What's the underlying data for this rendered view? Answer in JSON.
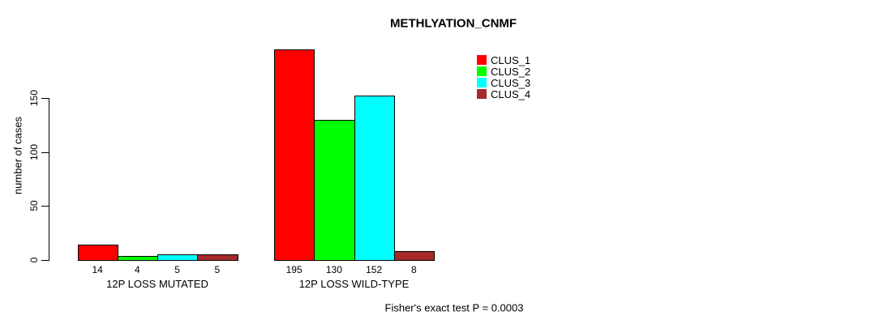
{
  "chart_data": {
    "type": "bar",
    "title": "METHLYATION_CNMF",
    "ylabel": "number of cases",
    "xlabel": "",
    "categories": [
      "12P LOSS MUTATED",
      "12P LOSS WILD-TYPE"
    ],
    "series": [
      {
        "name": "CLUS_1",
        "color": "#ff0000",
        "values": [
          14,
          195
        ]
      },
      {
        "name": "CLUS_2",
        "color": "#00ff00",
        "values": [
          4,
          130
        ]
      },
      {
        "name": "CLUS_3",
        "color": "#00ffff",
        "values": [
          5,
          152
        ]
      },
      {
        "name": "CLUS_4",
        "color": "#a52a2a",
        "values": [
          5,
          8
        ]
      }
    ],
    "ylim": [
      0,
      150
    ],
    "yticks": [
      0,
      50,
      100,
      150
    ],
    "show_bar_value_labels": true,
    "grid": false,
    "legend_position": "top-right",
    "annotation": "Fisher's exact test P = 0.0003"
  }
}
